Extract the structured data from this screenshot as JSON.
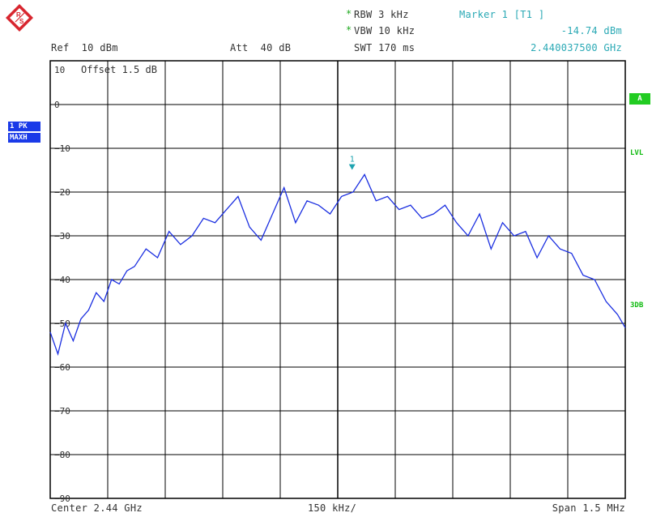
{
  "header": {
    "rbw": "RBW 3 kHz",
    "vbw": "VBW 10 kHz",
    "swt": "SWT 170 ms",
    "ref": "Ref  10 dBm",
    "att": "Att  40 dB",
    "marker_title": "Marker 1 [T1 ]",
    "marker_level": "-14.74 dBm",
    "marker_freq": "2.440037500 GHz",
    "offset": "Offset  1.5 dB"
  },
  "side": {
    "trace_badge1": "1 PK",
    "trace_badge2": "MAXH",
    "a_badge": "A",
    "lvl": "LVL",
    "db3": "3DB"
  },
  "footer": {
    "center": "Center 2.44 GHz",
    "div": "150 kHz/",
    "span": "Span 1.5 MHz"
  },
  "marker_label": "1",
  "colors": {
    "trace": "#1a2ee0",
    "marker": "#1ea3b0",
    "grid": "#000000",
    "accent_green": "#22cc22"
  },
  "chart_data": {
    "type": "line",
    "xlabel": "",
    "ylabel": "",
    "x_unit": "GHz",
    "y_unit": "dBm",
    "xlim": [
      2.43925,
      2.44075
    ],
    "ylim": [
      -95,
      5
    ],
    "yticks": [
      10,
      0,
      -10,
      -20,
      -30,
      -40,
      -50,
      -60,
      -70,
      -80,
      -90
    ],
    "grid": true,
    "series": [
      {
        "x": [
          2.43925,
          2.43927,
          2.43929,
          2.43931,
          2.43933,
          2.43935,
          2.43937,
          2.43939,
          2.43941,
          2.43943,
          2.43945,
          2.43947,
          2.4395,
          2.43953,
          2.43956,
          2.43959,
          2.43962,
          2.43965,
          2.43968,
          2.43971,
          2.43974,
          2.43977,
          2.4398,
          2.43983,
          2.43986,
          2.43989,
          2.43992,
          2.43995,
          2.43998,
          2.44001,
          2.44004,
          2.44007,
          2.4401,
          2.44013,
          2.44016,
          2.44019,
          2.44022,
          2.44025,
          2.44028,
          2.44031,
          2.44034,
          2.44037,
          2.4404,
          2.44043,
          2.44046,
          2.44049,
          2.44052,
          2.44055,
          2.44058,
          2.44061,
          2.44064,
          2.44067,
          2.4407,
          2.44073,
          2.44075
        ],
        "y": [
          -52,
          -57,
          -50,
          -54,
          -49,
          -47,
          -43,
          -45,
          -40,
          -41,
          -38,
          -37,
          -33,
          -35,
          -29,
          -32,
          -30,
          -26,
          -27,
          -24,
          -21,
          -28,
          -31,
          -25,
          -19,
          -27,
          -22,
          -23,
          -25,
          -21,
          -20,
          -16,
          -22,
          -21,
          -24,
          -23,
          -26,
          -25,
          -23,
          -27,
          -30,
          -25,
          -33,
          -27,
          -30,
          -29,
          -35,
          -30,
          -33,
          -34,
          -39,
          -40,
          -45,
          -48,
          -51
        ]
      }
    ],
    "marker": {
      "x": 2.4400375,
      "y": -14.74
    }
  }
}
